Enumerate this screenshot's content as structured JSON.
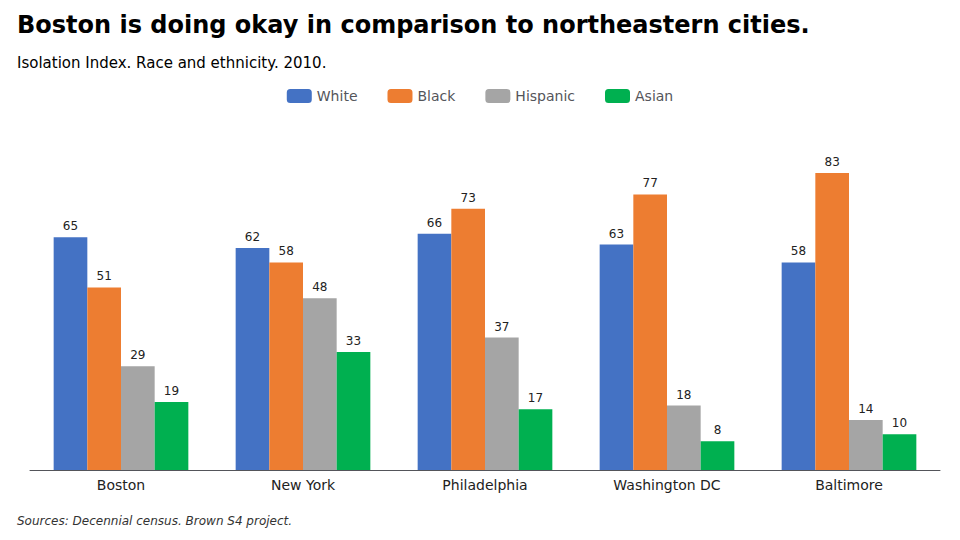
{
  "chart_data": {
    "type": "bar",
    "title": "Boston is doing okay in comparison to northeastern cities.",
    "subtitle": "Isolation Index. Race and ethnicity. 2010.",
    "footnote": "Sources: Decennial census. Brown S4 project.",
    "categories": [
      "Boston",
      "New York",
      "Philadelphia",
      "Washington DC",
      "Baltimore"
    ],
    "series": [
      {
        "name": "White",
        "color": "#4472C4",
        "values": [
          65,
          62,
          66,
          63,
          58
        ]
      },
      {
        "name": "Black",
        "color": "#ED7D31",
        "values": [
          51,
          58,
          73,
          77,
          83
        ]
      },
      {
        "name": "Hispanic",
        "color": "#A5A5A5",
        "values": [
          29,
          48,
          37,
          18,
          14
        ]
      },
      {
        "name": "Asian",
        "color": "#00B050",
        "values": [
          19,
          33,
          17,
          8,
          10
        ]
      }
    ],
    "ylim": [
      0,
      95
    ],
    "data_labels": true,
    "tick_labels": "x",
    "grid": false,
    "legend": "top"
  }
}
